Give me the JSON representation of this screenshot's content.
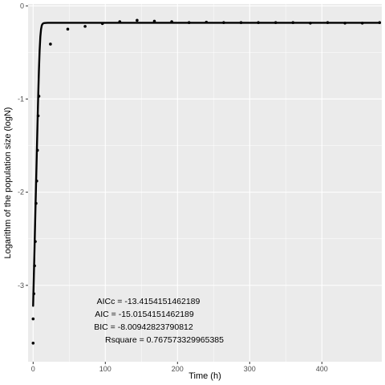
{
  "chart_data": {
    "type": "scatter",
    "xlabel": "Time (h)",
    "ylabel": "Logarithm of the population size (logN)",
    "xlim": [
      -7,
      483
    ],
    "ylim": [
      -3.82,
      0.02
    ],
    "x_ticks": [
      0,
      100,
      200,
      300,
      400
    ],
    "x_tick_labels": [
      "0",
      "100",
      "200",
      "300",
      "400"
    ],
    "y_ticks": [
      0,
      -1,
      -2,
      -3
    ],
    "y_tick_labels": [
      "0",
      "-1",
      "-2",
      "-3"
    ],
    "grid": true,
    "background": "#ebebeb",
    "grid_color": "#ffffff",
    "point_color": "#000000",
    "line_color": "#000000",
    "points": {
      "x": [
        0,
        0,
        1,
        2,
        3,
        4,
        5,
        6,
        7,
        8,
        24,
        48,
        72,
        96,
        120,
        144,
        168,
        192,
        216,
        240,
        264,
        288,
        312,
        336,
        360,
        384,
        408,
        432,
        456,
        480
      ],
      "y": [
        -3.62,
        -3.36,
        -3.09,
        -2.79,
        -2.53,
        -2.12,
        -1.88,
        -1.55,
        -1.18,
        -0.97,
        -0.41,
        -0.25,
        -0.22,
        -0.19,
        -0.17,
        -0.155,
        -0.165,
        -0.17,
        -0.18,
        -0.175,
        -0.18,
        -0.18,
        -0.18,
        -0.18,
        -0.18,
        -0.185,
        -0.18,
        -0.185,
        -0.185,
        -0.18
      ]
    },
    "fitted_curve": {
      "x": [
        0,
        1,
        2,
        3,
        4,
        5,
        6,
        7,
        8,
        9,
        10,
        11,
        12,
        13,
        14,
        15,
        16,
        18,
        20,
        25,
        30,
        40,
        60,
        100,
        200,
        300,
        400,
        480
      ],
      "y": [
        -3.22,
        -2.9,
        -2.58,
        -2.25,
        -1.93,
        -1.61,
        -1.29,
        -0.98,
        -0.7,
        -0.48,
        -0.33,
        -0.25,
        -0.21,
        -0.195,
        -0.188,
        -0.185,
        -0.184,
        -0.183,
        -0.182,
        -0.182,
        -0.182,
        -0.182,
        -0.182,
        -0.182,
        -0.182,
        -0.182,
        -0.182,
        -0.182
      ]
    },
    "annotations": [
      "AICc = -13.4154151462189",
      "AIC = -15.0154151462189",
      "BIC = -8.00942823790812",
      "Rsquare = 0.767573329965385"
    ]
  }
}
